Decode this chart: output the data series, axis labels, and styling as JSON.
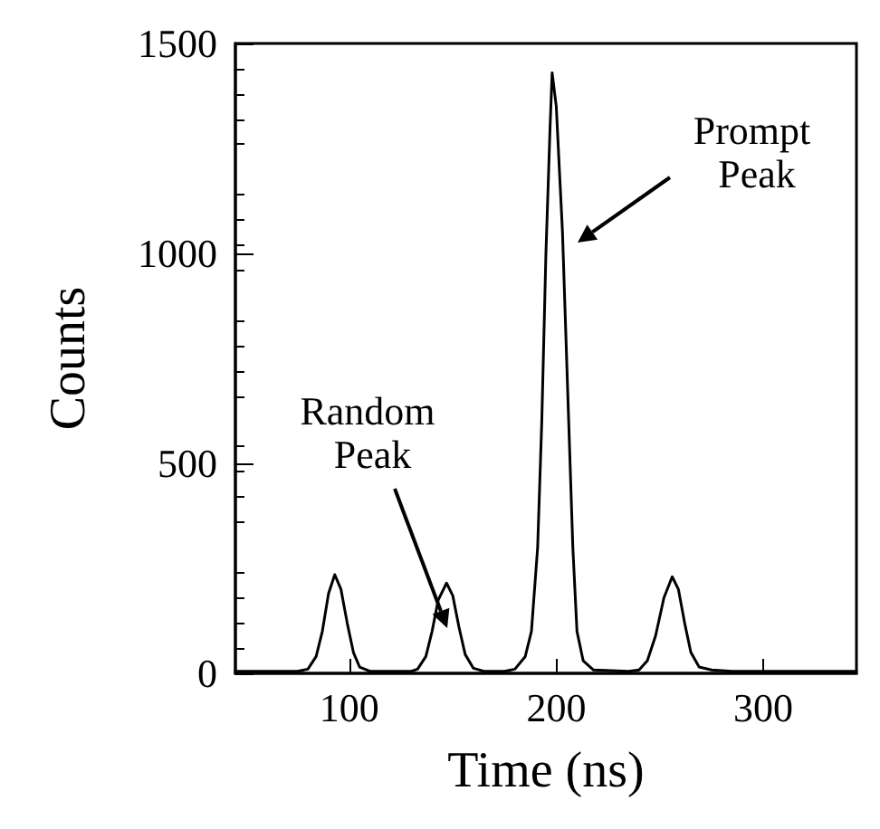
{
  "chart_data": {
    "type": "line",
    "xlabel": "Time (ns)",
    "ylabel": "Counts",
    "x": [
      45,
      75,
      80,
      84,
      87,
      90,
      93,
      96,
      99,
      102,
      105,
      110,
      130,
      133,
      137,
      140,
      143,
      147,
      150,
      153,
      156,
      160,
      165,
      175,
      180,
      185,
      188,
      191,
      193,
      195,
      197,
      198,
      200,
      202,
      203,
      204,
      206,
      208,
      210,
      213,
      218,
      235,
      240,
      244,
      248,
      252,
      256,
      259,
      262,
      265,
      269,
      275,
      285,
      345
    ],
    "series": [
      {
        "color": "#000000",
        "values": [
          5,
          5,
          10,
          40,
          100,
          190,
          235,
          200,
          120,
          50,
          15,
          5,
          5,
          10,
          40,
          100,
          175,
          215,
          185,
          110,
          45,
          12,
          5,
          5,
          10,
          40,
          100,
          300,
          600,
          1000,
          1300,
          1430,
          1350,
          1150,
          1050,
          900,
          600,
          300,
          100,
          30,
          8,
          5,
          8,
          30,
          90,
          180,
          230,
          200,
          120,
          50,
          15,
          8,
          5,
          5
        ]
      }
    ],
    "xlim": [
      45,
      345
    ],
    "ylim": [
      0,
      1500
    ],
    "xticks": [
      100,
      200,
      300
    ],
    "yticks": [
      0,
      500,
      1000,
      1500
    ],
    "marker": "none",
    "line_style": "solid",
    "grid": false,
    "annotations": [
      "Random Peak",
      "Prompt Peak"
    ]
  }
}
